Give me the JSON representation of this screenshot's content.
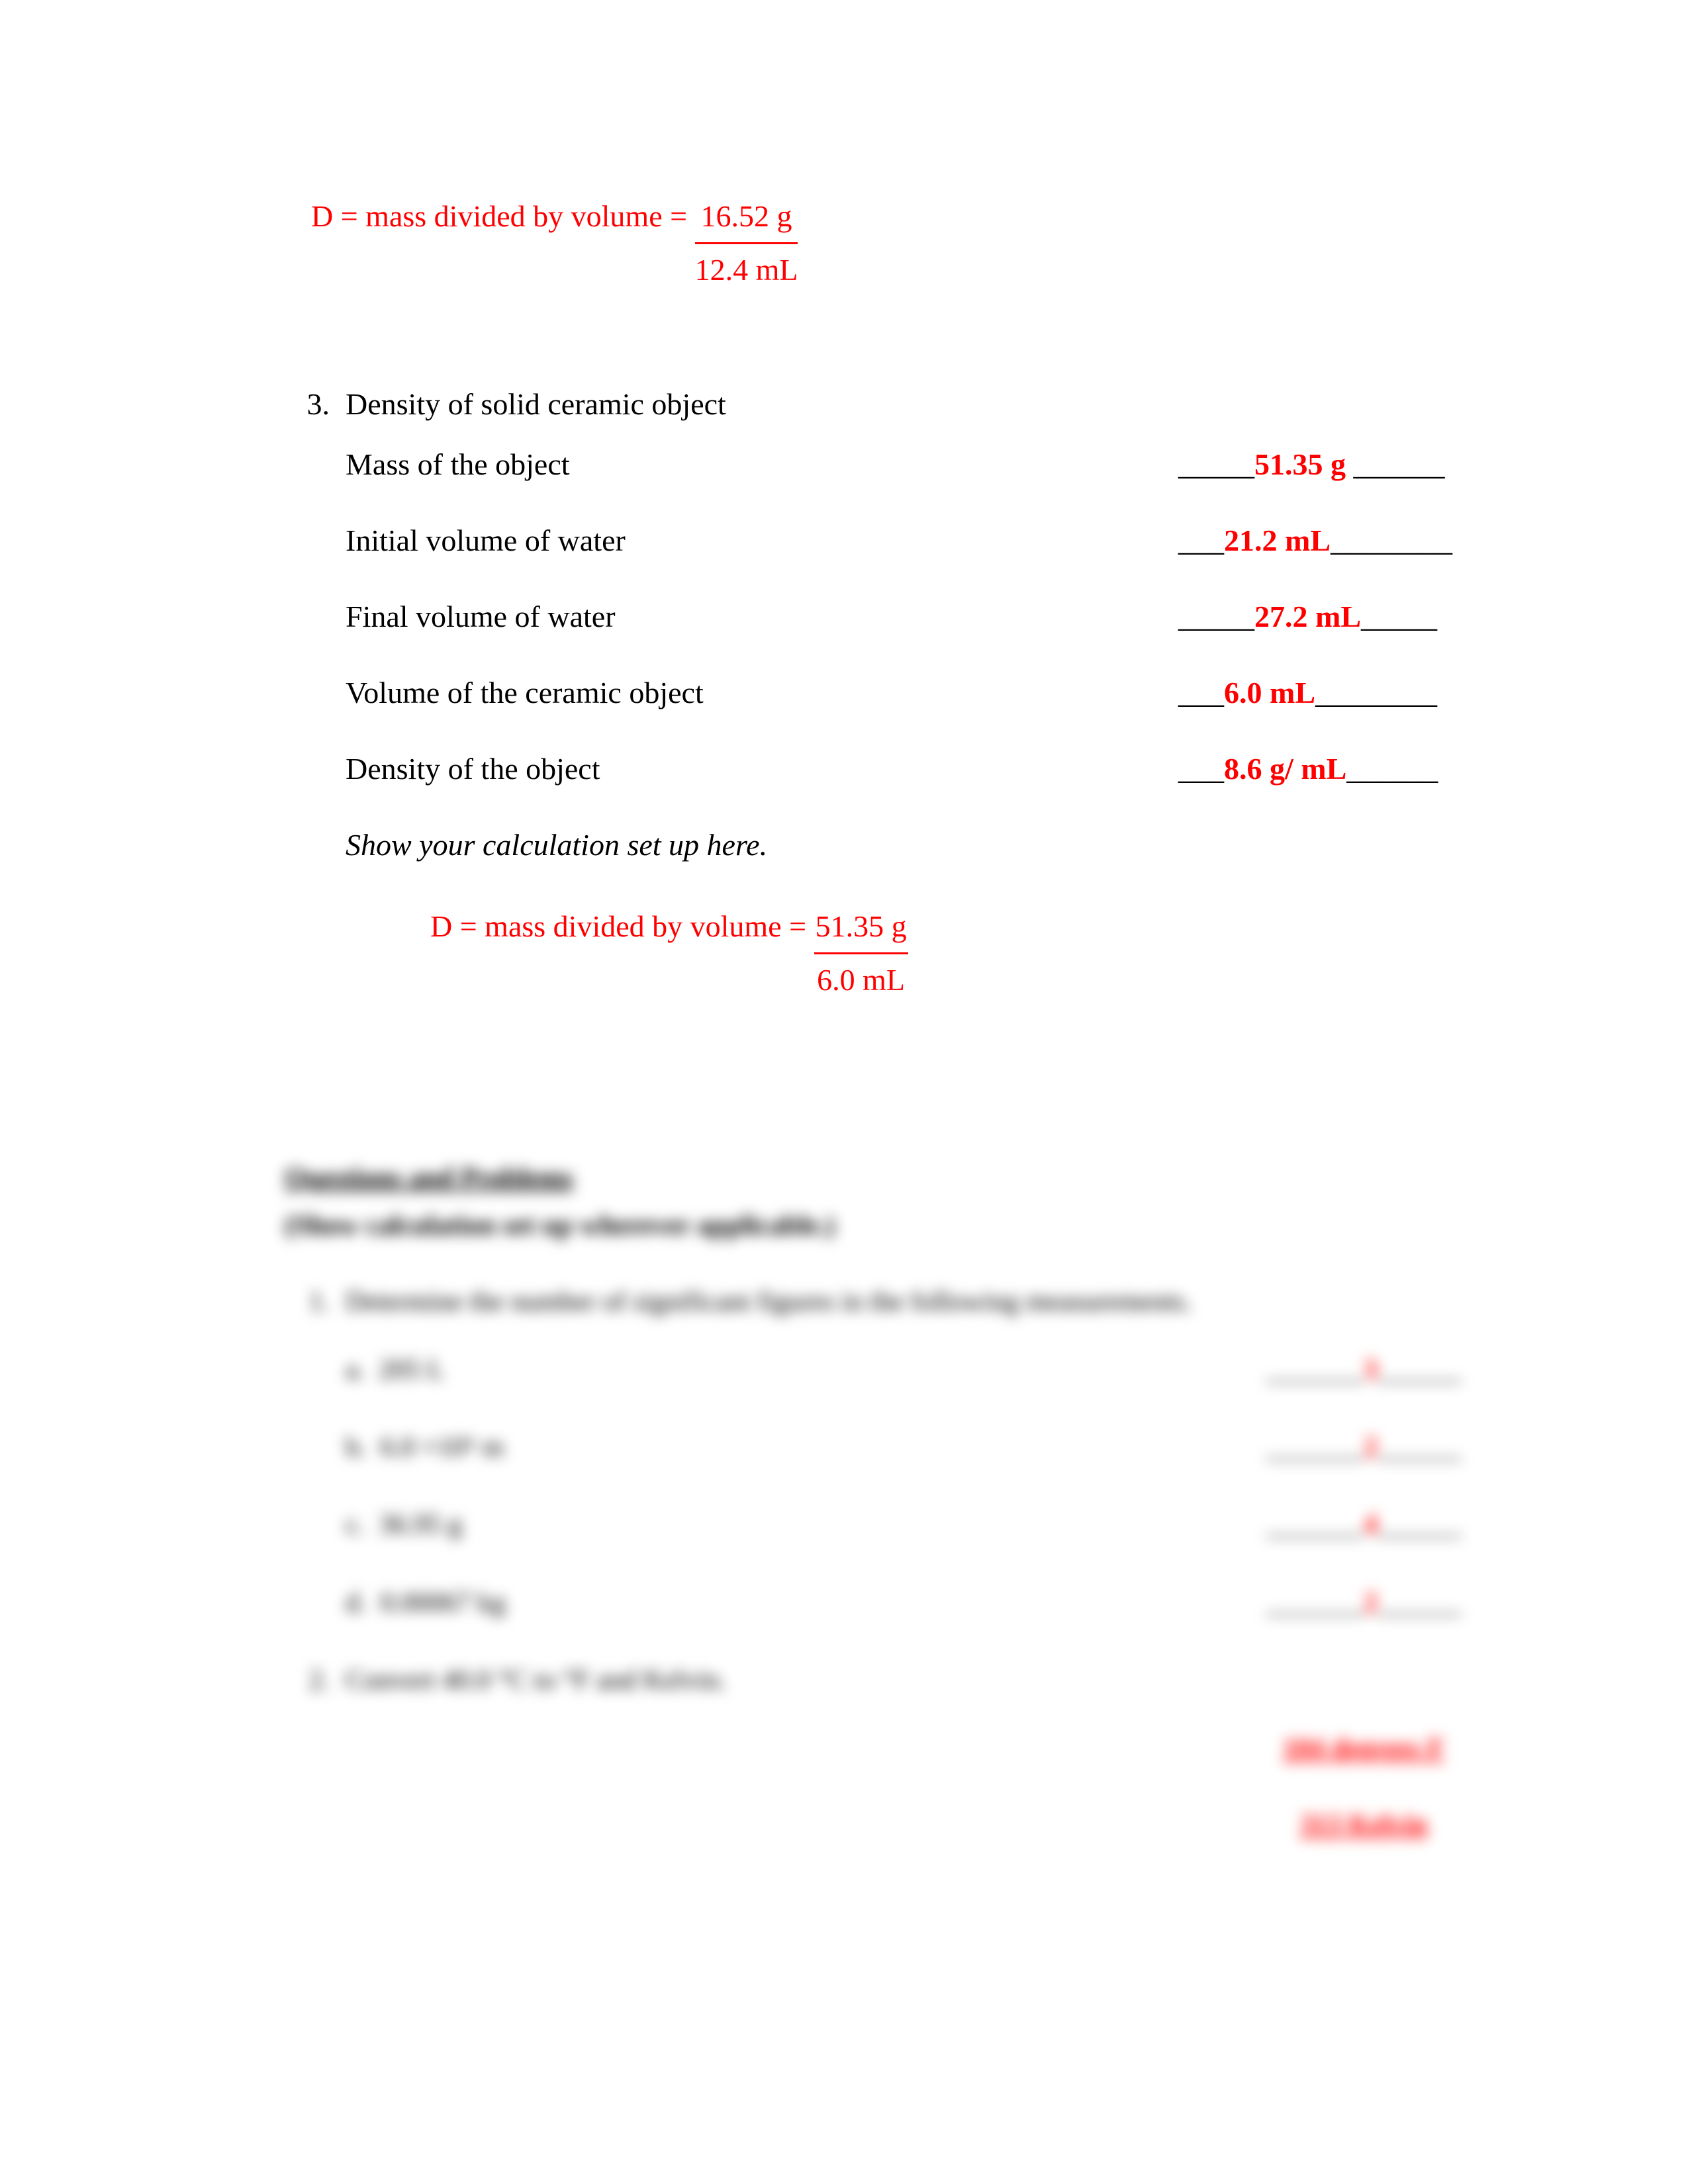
{
  "eq1": {
    "prefix": "D = mass divided by volume = ",
    "numerator": "16.52 g",
    "denominator": "12.4 mL"
  },
  "q3": {
    "number": "3.",
    "title": "Density of solid ceramic object",
    "rows": [
      {
        "label": "Mass of the object",
        "pre": "_____",
        "value": "51.35 g",
        "post": " ______"
      },
      {
        "label": "Initial volume of water",
        "pre": "___",
        "value": "21.2 mL",
        "post": "________"
      },
      {
        "label": "Final volume of water",
        "pre": "_____",
        "value": "27.2 mL",
        "post": "_____"
      },
      {
        "label": "Volume of the ceramic object",
        "pre": "___",
        "value": "6.0 mL",
        "post": "________"
      },
      {
        "label": "Density of the object",
        "pre": "___",
        "value": "8.6 g/ mL",
        "post": "______"
      }
    ],
    "instruction": "Show your calculation set up here.",
    "eq": {
      "prefix": "D = mass divided by volume = ",
      "numerator": "51.35 g",
      "denominator": "6.0 mL"
    }
  },
  "blurred": {
    "heading": "Questions and Problems",
    "sub": "(Show calculation set up wherever applicable.)",
    "q1": {
      "num": "1.",
      "text": "Determine the number of significant figures in the following measurements.",
      "items": [
        {
          "letter": "a.",
          "label": "205 L",
          "ans_pre": "_______",
          "ans": "3",
          "ans_post": "______"
        },
        {
          "letter": "b.",
          "label": "6.0 ×10⁵ m",
          "ans_pre": "_______",
          "ans": "2",
          "ans_post": "______"
        },
        {
          "letter": "c.",
          "label": "36.95 g",
          "ans_pre": "_______",
          "ans": "4",
          "ans_post": "______"
        },
        {
          "letter": "d.",
          "label": "0.00067 kg",
          "ans_pre": "_______",
          "ans": "2",
          "ans_post": "______"
        }
      ]
    },
    "q2": {
      "num": "2.",
      "text": "Convert 40.0 °C to °F and Kelvin.",
      "answers": [
        "104 degrees F",
        "313 Kelvin"
      ]
    }
  }
}
